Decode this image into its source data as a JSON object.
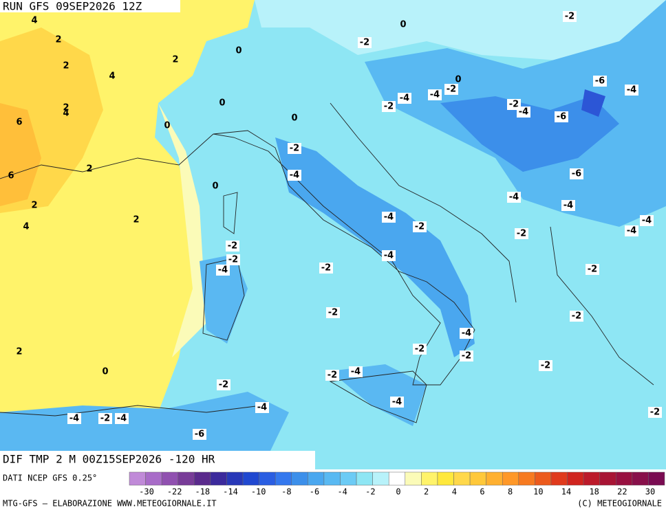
{
  "header": {
    "run": "RUN GFS 09SEP2026 12Z"
  },
  "field": {
    "title": "DIF TMP 2 M 00Z15SEP2026 -120 HR",
    "source": "DATI NCEP GFS 0.25°"
  },
  "contour_labels": [
    4,
    2,
    2,
    4,
    2,
    0,
    0,
    -2,
    -2,
    2,
    4,
    6,
    0,
    0,
    0,
    0,
    -4,
    -4,
    -2,
    -2,
    -2,
    -4,
    -6,
    -4,
    -6,
    -2,
    2,
    6,
    0,
    -4,
    -6,
    -4,
    -4,
    2,
    4,
    2,
    -4,
    -2,
    -2,
    -4,
    -4,
    -2,
    -2,
    -4,
    -2,
    -4,
    -2,
    -2,
    -2,
    -4,
    -2,
    -2,
    -2,
    2,
    0,
    -2,
    -4,
    -2,
    -4,
    -4,
    -4,
    -2,
    -4,
    -6,
    -2
  ],
  "legend": {
    "colors": [
      "#c08ad8",
      "#a86cc8",
      "#9050b0",
      "#783c98",
      "#5a2a8c",
      "#3c2a9c",
      "#2838b8",
      "#2048d0",
      "#2a5ee2",
      "#3478ee",
      "#3c8fea",
      "#4aa7ef",
      "#59b9f2",
      "#6ccbf5",
      "#8ee6f4",
      "#b8f2fa",
      "#ffffff",
      "#fbfbb8",
      "#fff36a",
      "#ffe83c",
      "#ffd84a",
      "#ffc83a",
      "#ffb030",
      "#ff9828",
      "#f77a20",
      "#ec5a1c",
      "#e03a1c",
      "#d0241e",
      "#bc1a2a",
      "#a81434",
      "#981040",
      "#88104a",
      "#7a0c52"
    ],
    "ticks": [
      -30,
      -22,
      -18,
      -14,
      -10,
      -8,
      -6,
      -4,
      -2,
      0,
      2,
      4,
      6,
      8,
      10,
      14,
      18,
      22,
      30
    ]
  },
  "footer": {
    "left": "MTG-GFS – ELABORAZIONE WWW.METEOGIORNALE.IT",
    "right": "(C) METEOGIORNALE"
  }
}
